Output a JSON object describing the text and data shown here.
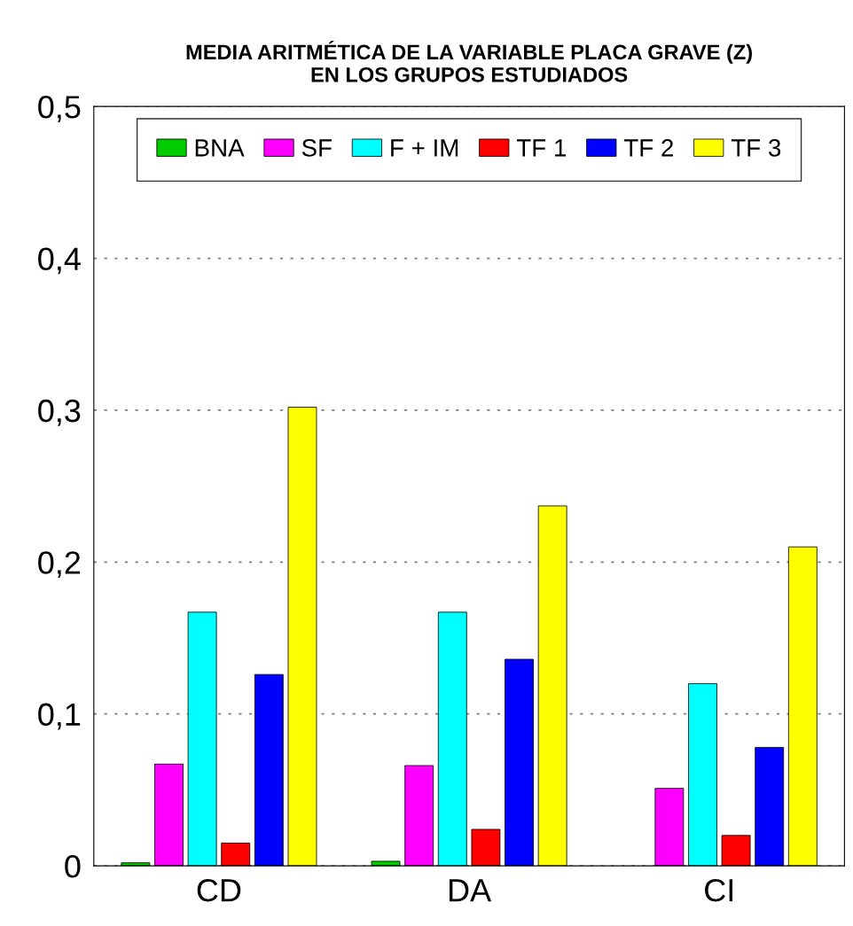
{
  "chart_data": {
    "type": "bar",
    "title": "MEDIA ARITMÉTICA DE LA VARIABLE PLACA GRAVE (Z)\nEN LOS GRUPOS ESTUDIADOS",
    "categories": [
      "CD",
      "DA",
      "CI"
    ],
    "series": [
      {
        "name": "BNA",
        "color": "#00cc00",
        "values": [
          0.002,
          0.003,
          null
        ]
      },
      {
        "name": "SF",
        "color": "#ff00ff",
        "values": [
          0.067,
          0.066,
          0.051
        ]
      },
      {
        "name": "F + IM",
        "color": "#00ffff",
        "values": [
          0.167,
          0.167,
          0.12
        ]
      },
      {
        "name": "TF 1",
        "color": "#ff0000",
        "values": [
          0.015,
          0.024,
          0.02
        ]
      },
      {
        "name": "TF 2",
        "color": "#0000ff",
        "values": [
          0.126,
          0.136,
          0.078
        ]
      },
      {
        "name": "TF 3",
        "color": "#ffff00",
        "values": [
          0.302,
          0.237,
          0.21
        ]
      }
    ],
    "ylim": [
      0,
      0.5
    ],
    "yticks": [
      {
        "value": 0,
        "label": "0"
      },
      {
        "value": 0.1,
        "label": "0,1"
      },
      {
        "value": 0.2,
        "label": "0,2"
      },
      {
        "value": 0.3,
        "label": "0,3"
      },
      {
        "value": 0.4,
        "label": "0,4"
      },
      {
        "value": 0.5,
        "label": "0,5"
      }
    ],
    "grid": "y",
    "legend": "top"
  }
}
